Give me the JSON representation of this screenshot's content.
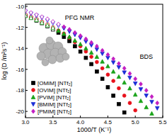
{
  "chart_data": {
    "type": "scatter",
    "xlabel": "1000/T (K⁻¹)",
    "ylabel": "log (D /m²s⁻¹)",
    "annotations": [
      "PFG NMR",
      "BDS"
    ],
    "xlim": [
      3.0,
      5.5
    ],
    "xticks": [
      {
        "value": 3,
        "label": "3.0"
      },
      3.5,
      {
        "value": 4,
        "label": "4.0"
      },
      4.5,
      {
        "value": 5,
        "label": "5.0"
      },
      5.5
    ],
    "ylim": [
      -20.6,
      -9.8
    ],
    "yticks": [
      -20,
      -18,
      -16,
      -14,
      -12,
      -10
    ],
    "legend": "lower left",
    "series": [
      {
        "name": "[OMIM] [NTf₂]",
        "color": "#000000",
        "marker": "square",
        "x": [
          3.6,
          3.7,
          3.8,
          3.9,
          4.0,
          4.1,
          4.2,
          4.3,
          4.4,
          4.5,
          4.6,
          4.7,
          4.8
        ],
        "values": [
          -12.5,
          -12.9,
          -13.3,
          -13.8,
          -14.3,
          -14.9,
          -15.5,
          -16.2,
          -16.9,
          -17.7,
          -18.5,
          -19.3,
          -20.1
        ]
      },
      {
        "name": "[OVIM] [NTf₂]",
        "color": "#e8121c",
        "marker": "circle",
        "x": [
          3.6,
          3.7,
          3.8,
          3.9,
          4.0,
          4.1,
          4.2,
          4.3,
          4.4,
          4.5,
          4.6,
          4.7,
          4.8,
          4.9,
          5.0
        ],
        "values": [
          -12.3,
          -12.6,
          -13.0,
          -13.4,
          -13.8,
          -14.3,
          -14.8,
          -15.3,
          -15.9,
          -16.5,
          -17.1,
          -17.8,
          -18.5,
          -19.2,
          -19.9
        ]
      },
      {
        "name": "[PVIM] [NTf₂]",
        "color": "#1aa31a",
        "marker": "triangle",
        "x": [
          3.6,
          3.7,
          3.8,
          3.9,
          4.0,
          4.1,
          4.2,
          4.3,
          4.4,
          4.5,
          4.6,
          4.7,
          4.8,
          4.9,
          5.0,
          5.1,
          5.2,
          5.3
        ],
        "values": [
          -12.3,
          -12.6,
          -12.9,
          -13.25,
          -13.6,
          -14.0,
          -14.4,
          -14.8,
          -15.25,
          -15.7,
          -16.2,
          -16.7,
          -17.25,
          -17.8,
          -18.4,
          -19.0,
          -19.6,
          -20.2
        ]
      },
      {
        "name": "[BMIM] [NTf₂]",
        "color": "#1c2fd6",
        "marker": "triangle-down",
        "x": [
          3.7,
          3.8,
          3.9,
          4.0,
          4.1,
          4.2,
          4.3,
          4.4,
          4.5,
          4.6,
          4.7,
          4.8,
          4.9,
          5.0,
          5.1,
          5.2,
          5.3,
          5.4
        ],
        "values": [
          -12.1,
          -12.4,
          -12.7,
          -13.0,
          -13.35,
          -13.7,
          -14.1,
          -14.5,
          -14.9,
          -15.35,
          -15.8,
          -16.3,
          -16.8,
          -17.35,
          -17.9,
          -18.5,
          -19.1,
          -19.7
        ]
      },
      {
        "name": "[PMIM] [NTf₂]",
        "color": "#c21fc2",
        "marker": "diamond",
        "x": [
          3.7,
          3.8,
          3.9,
          4.0,
          4.1,
          4.2,
          4.3,
          4.4,
          4.5,
          4.6,
          4.7,
          4.8,
          4.9,
          5.0,
          5.1,
          5.2,
          5.3,
          5.4
        ],
        "values": [
          -11.95,
          -12.2,
          -12.5,
          -12.8,
          -13.1,
          -13.45,
          -13.8,
          -14.2,
          -14.6,
          -15.0,
          -15.45,
          -15.9,
          -16.4,
          -16.9,
          -17.4,
          -18.0,
          -18.6,
          -19.2
        ]
      },
      {
        "color": "#000000",
        "marker": "square-open",
        "x": [
          3.0,
          3.1,
          3.2,
          3.3,
          3.4,
          3.5
        ],
        "values": [
          -10.9,
          -11.1,
          -11.35,
          -11.6,
          -11.9,
          -12.2
        ]
      },
      {
        "color": "#e8121c",
        "marker": "circle-open",
        "x": [
          3.0,
          3.1,
          3.2,
          3.3,
          3.4,
          3.5
        ],
        "values": [
          -10.8,
          -11.0,
          -11.2,
          -11.45,
          -11.7,
          -12.0
        ]
      },
      {
        "color": "#1aa31a",
        "marker": "triangle-open",
        "x": [
          3.0,
          3.1,
          3.2,
          3.3,
          3.4,
          3.5
        ],
        "values": [
          -10.9,
          -11.1,
          -11.3,
          -11.55,
          -11.8,
          -12.05
        ]
      },
      {
        "color": "#1c2fd6",
        "marker": "triangle-down-open",
        "x": [
          3.0,
          3.1,
          3.2,
          3.3,
          3.4,
          3.5,
          3.6
        ],
        "values": [
          -10.5,
          -10.7,
          -10.9,
          -11.1,
          -11.35,
          -11.6,
          -11.85
        ]
      },
      {
        "color": "#c21fc2",
        "marker": "diamond-open",
        "x": [
          3.0,
          3.1,
          3.2,
          3.3,
          3.4,
          3.5,
          3.6
        ],
        "values": [
          -10.4,
          -10.6,
          -10.8,
          -11.0,
          -11.2,
          -11.45,
          -11.7
        ]
      }
    ]
  }
}
